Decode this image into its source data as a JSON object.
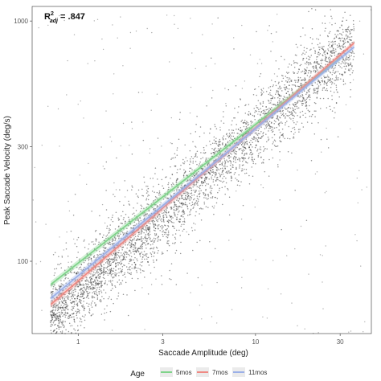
{
  "chart_data": {
    "type": "scatter",
    "annotation": {
      "r_symbol": "R",
      "superscript": "2",
      "subscript": "adj",
      "value_text": " = .847"
    },
    "xlabel": "Saccade Amplitude (deg)",
    "ylabel": "Peak Saccade Velocity (deg/s)",
    "x_scale": "log",
    "y_scale": "log",
    "xlim": [
      0.55,
      45
    ],
    "ylim": [
      50,
      1150
    ],
    "x_ticks": [
      {
        "value": 1,
        "label": "1"
      },
      {
        "value": 3,
        "label": "3"
      },
      {
        "value": 10,
        "label": "10"
      },
      {
        "value": 30,
        "label": "30"
      }
    ],
    "y_ticks": [
      {
        "value": 100,
        "label": "100"
      },
      {
        "value": 300,
        "label": "300"
      },
      {
        "value": 1000,
        "label": "1000"
      }
    ],
    "grid": false,
    "scatter_color": "#3a3a3a",
    "scatter_trend": {
      "x_range": [
        0.7,
        36
      ],
      "y_at_x1": 75,
      "exponent": 0.67,
      "count": 4200
    },
    "legend": {
      "title": "Age",
      "placement": "bottom"
    },
    "series": [
      {
        "name": "5mos",
        "color": "#7fd48a",
        "x": [
          0.7,
          30
        ],
        "y": [
          80,
          700
        ]
      },
      {
        "name": "7mos",
        "color": "#f08a84",
        "x": [
          0.7,
          36
        ],
        "y": [
          66,
          810
        ]
      },
      {
        "name": "11mos",
        "color": "#9bb0e8",
        "x": [
          0.7,
          36
        ],
        "y": [
          70,
          780
        ]
      }
    ]
  }
}
